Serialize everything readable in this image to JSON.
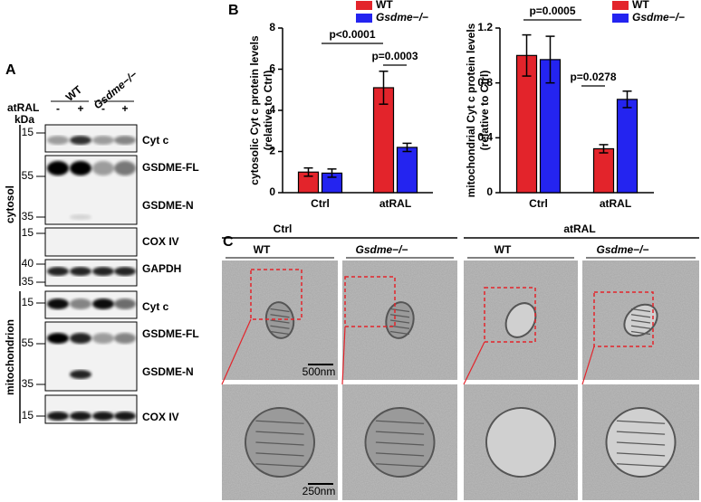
{
  "panel_labels": [
    "A",
    "B",
    "C"
  ],
  "blot": {
    "lanes": [
      "WT",
      "Gsdme−/−"
    ],
    "treatment": "atRAL",
    "treatment_marks": [
      "-",
      "+",
      "-",
      "+"
    ],
    "unit": "kDa",
    "markers": [
      "15",
      "55",
      "35",
      "15",
      "40",
      "35",
      "15",
      "55",
      "35",
      "15"
    ],
    "proteins": [
      "Cyt c",
      "GSDME-FL",
      "GSDME-N",
      "COX IV",
      "GAPDH",
      "Cyt c",
      "GSDME-FL",
      "GSDME-N",
      "COX IV"
    ],
    "fractions": [
      "cytosol",
      "mitochondrion"
    ]
  },
  "chart_data": [
    {
      "type": "bar",
      "ylabel": [
        "cytosolic Cyt c protein levels",
        "(relative to Ctrl)"
      ],
      "categories": [
        "Ctrl",
        "atRAL"
      ],
      "series": [
        {
          "name": "WT",
          "color": "#e3242b",
          "values": [
            1.0,
            5.1
          ],
          "errors": [
            0.2,
            0.8
          ]
        },
        {
          "name": "Gsdme−/−",
          "color": "#2424f0",
          "values": [
            0.95,
            2.2
          ],
          "errors": [
            0.2,
            0.2
          ]
        }
      ],
      "ylim": [
        0,
        8
      ],
      "yticks": [
        0,
        2,
        4,
        6,
        8
      ],
      "annotations": [
        "p<0.0001",
        "p=0.0003"
      ]
    },
    {
      "type": "bar",
      "ylabel": [
        "mitochondrial Cyt c protein levels",
        "(relative to Ctrl)"
      ],
      "categories": [
        "Ctrl",
        "atRAL"
      ],
      "series": [
        {
          "name": "WT",
          "color": "#e3242b",
          "values": [
            1.0,
            0.32
          ],
          "errors": [
            0.15,
            0.03
          ]
        },
        {
          "name": "Gsdme−/−",
          "color": "#2424f0",
          "values": [
            0.97,
            0.68
          ],
          "errors": [
            0.17,
            0.06
          ]
        }
      ],
      "ylim": [
        0,
        1.2
      ],
      "yticks": [
        0,
        0.4,
        0.8,
        1.2
      ],
      "annotations": [
        "p=0.0005",
        "p=0.0278"
      ]
    }
  ],
  "em": {
    "groups": [
      "Ctrl",
      "atRAL"
    ],
    "columns": [
      "WT",
      "Gsdme−/−",
      "WT",
      "Gsdme−/−"
    ],
    "scale_bars": [
      "500nm",
      "250nm"
    ]
  }
}
